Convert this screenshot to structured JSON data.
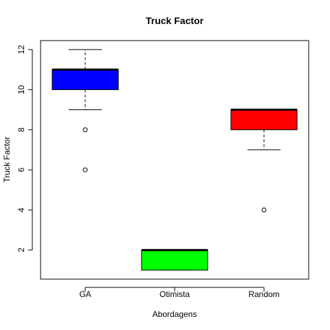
{
  "chart_data": {
    "type": "box",
    "title": "Truck Factor",
    "xlabel": "Abordagens",
    "ylabel": "Truck Factor",
    "categories": [
      "GA",
      "Otimista",
      "Random"
    ],
    "yticks": [
      2,
      4,
      6,
      8,
      10,
      12
    ],
    "ylim": [
      0.55,
      12.45
    ],
    "grid": false,
    "boxes": [
      {
        "category": "GA",
        "color": "#0000ff",
        "whisker_low": 9,
        "q1": 10,
        "median": 11,
        "q3": 11,
        "whisker_high": 12,
        "outliers": [
          8,
          6
        ]
      },
      {
        "category": "Otimista",
        "color": "#00ff00",
        "whisker_low": 1,
        "q1": 1,
        "median": 2,
        "q3": 2,
        "whisker_high": 2,
        "outliers": []
      },
      {
        "category": "Random",
        "color": "#ff0000",
        "whisker_low": 7,
        "q1": 8,
        "median": 9,
        "q3": 9,
        "whisker_high": 9,
        "outliers": [
          4
        ]
      }
    ]
  }
}
